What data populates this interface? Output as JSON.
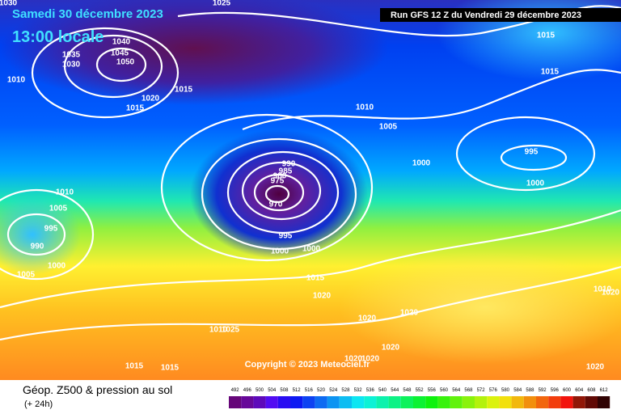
{
  "header": {
    "date": "Samedi 30 décembre 2023",
    "time": "13:00 locale",
    "run": "Run GFS 12 Z du Vendredi 29 décembre 2023"
  },
  "copyright": "Copyright © 2023 Meteociel.fr",
  "footer": {
    "title": "Géop. Z500 & pression au sol",
    "lead": "(+ 24h)"
  },
  "legend": {
    "values": [
      492,
      496,
      500,
      504,
      508,
      512,
      516,
      520,
      524,
      528,
      532,
      536,
      540,
      544,
      548,
      552,
      556,
      560,
      564,
      568,
      572,
      576,
      580,
      584,
      588,
      592,
      596,
      600,
      604,
      608,
      612
    ]
  },
  "isobar_labels": [
    1030,
    1025,
    1040,
    1045,
    1050,
    1035,
    1030,
    1010,
    1015,
    1020,
    1015,
    1015,
    1015,
    1010,
    1005,
    1000,
    995,
    1000,
    990,
    985,
    980,
    975,
    970,
    995,
    1000,
    1000,
    1010,
    1005,
    995,
    990,
    1000,
    1005,
    1015,
    1020,
    1020,
    1020,
    1010,
    1025,
    1020,
    1020,
    1020,
    1015,
    1015,
    1010,
    1020,
    1020
  ]
}
